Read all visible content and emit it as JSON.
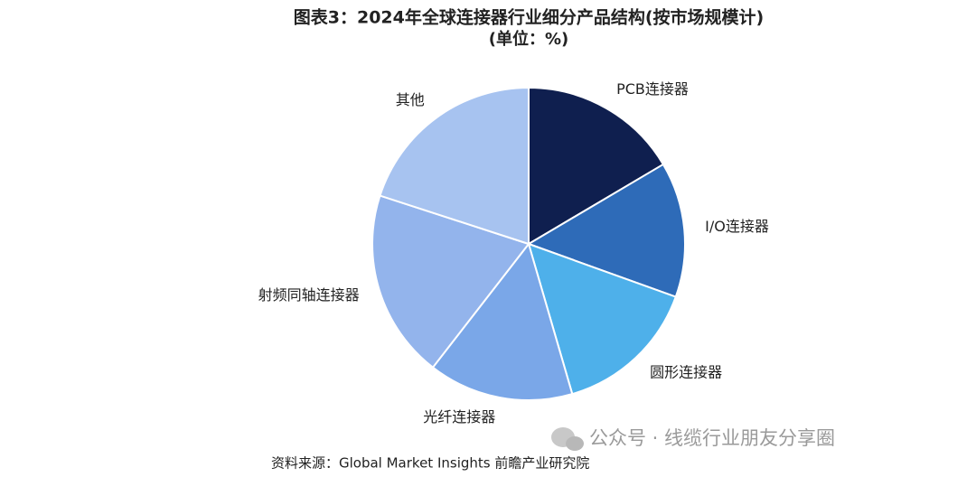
{
  "chart_data": {
    "type": "pie",
    "title": "图表3：2024年全球连接器行业细分产品结构(按市场规模计)",
    "subtitle": "(单位：%)",
    "categories": [
      "PCB连接器",
      "I/O连接器",
      "圆形连接器",
      "光纤连接器",
      "射频同轴连接器",
      "其他"
    ],
    "values": [
      16.5,
      14,
      15,
      15,
      19.5,
      20
    ],
    "colors": [
      "#0f1f4f",
      "#2e6bb8",
      "#4eb0ea",
      "#7aa7e8",
      "#93b4ec",
      "#a7c3f0"
    ],
    "source": "资料来源：Global Market Insights 前瞻产业研究院",
    "watermark": "公众号 · 线缆行业朋友分享圈"
  }
}
